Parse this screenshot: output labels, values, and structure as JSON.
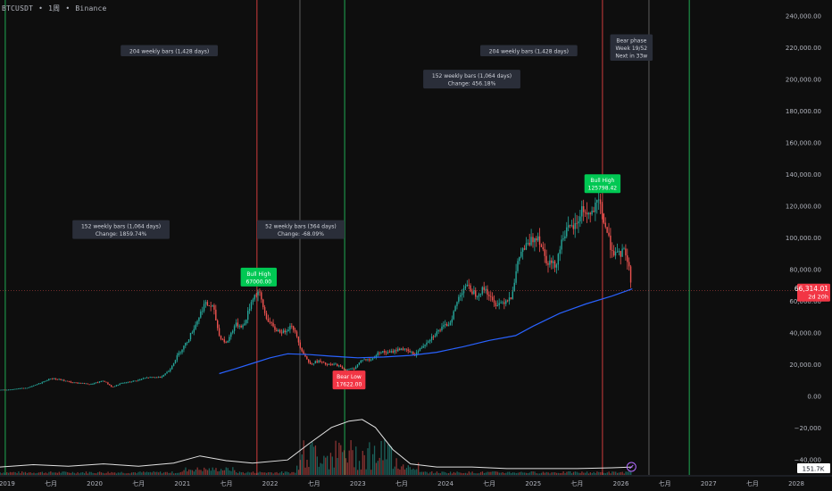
{
  "header": {
    "symbol": "BTCUSDT",
    "interval": "1周",
    "exchange": "Binance",
    "separator": "•"
  },
  "colors": {
    "background": "#0e0e0e",
    "up": "#26a69a",
    "down": "#ef5350",
    "ma": "#2962ff",
    "vol_ma": "#e0e0e0",
    "green_line": "#22c55e",
    "red_line": "#ef4444",
    "gray_line": "#9e9e9e",
    "label_bg": "#2a2e39",
    "bull_label": "#00c853",
    "bear_label": "#f23645",
    "price_label": "#f23645"
  },
  "last_price": {
    "value": "66,314.01",
    "countdown": "2d 20h"
  },
  "volume_readout": "151.7K",
  "chart_data": {
    "type": "candlestick",
    "y_axis": {
      "min": -50000,
      "max": 250000,
      "ticks": [
        240000,
        220000,
        200000,
        180000,
        160000,
        140000,
        120000,
        100000,
        80000,
        60000,
        40000,
        20000,
        0,
        -20000,
        -40000
      ],
      "tick_labels": [
        "240,000.00",
        "220,000.00",
        "200,000.00",
        "180,000.00",
        "160,000.00",
        "140,000.00",
        "120,000.00",
        "100,000.00",
        "80,000.00",
        "60,000.00",
        "40,000.00",
        "20,000.00",
        "0.00",
        "−20,000",
        "−40,000"
      ]
    },
    "x_axis": {
      "range": [
        2018.92,
        2028.0
      ],
      "ticks": [
        {
          "t": 2019.0,
          "label": "2019"
        },
        {
          "t": 2019.5,
          "label": "七月"
        },
        {
          "t": 2020.0,
          "label": "2020"
        },
        {
          "t": 2020.5,
          "label": "七月"
        },
        {
          "t": 2021.0,
          "label": "2021"
        },
        {
          "t": 2021.5,
          "label": "七月"
        },
        {
          "t": 2022.0,
          "label": "2022"
        },
        {
          "t": 2022.5,
          "label": "七月"
        },
        {
          "t": 2023.0,
          "label": "2023"
        },
        {
          "t": 2023.5,
          "label": "七月"
        },
        {
          "t": 2024.0,
          "label": "2024"
        },
        {
          "t": 2024.5,
          "label": "七月"
        },
        {
          "t": 2025.0,
          "label": "2025"
        },
        {
          "t": 2025.5,
          "label": "七月"
        },
        {
          "t": 2026.0,
          "label": "2026"
        },
        {
          "t": 2026.5,
          "label": "七月"
        },
        {
          "t": 2027.0,
          "label": "2027"
        },
        {
          "t": 2027.5,
          "label": "七月"
        },
        {
          "t": 2028.0,
          "label": "2028"
        }
      ]
    },
    "price_series": [
      [
        2018.92,
        3700
      ],
      [
        2019.0,
        3800
      ],
      [
        2019.25,
        5200
      ],
      [
        2019.4,
        8500
      ],
      [
        2019.5,
        11000
      ],
      [
        2019.6,
        10200
      ],
      [
        2019.75,
        8300
      ],
      [
        2019.85,
        8000
      ],
      [
        2019.95,
        7200
      ],
      [
        2020.1,
        9500
      ],
      [
        2020.2,
        5400
      ],
      [
        2020.3,
        7800
      ],
      [
        2020.45,
        9300
      ],
      [
        2020.6,
        11500
      ],
      [
        2020.75,
        11800
      ],
      [
        2020.85,
        16000
      ],
      [
        2020.95,
        26000
      ],
      [
        2021.05,
        34000
      ],
      [
        2021.15,
        45000
      ],
      [
        2021.25,
        58000
      ],
      [
        2021.35,
        56000
      ],
      [
        2021.42,
        38000
      ],
      [
        2021.5,
        33000
      ],
      [
        2021.6,
        45000
      ],
      [
        2021.7,
        44000
      ],
      [
        2021.8,
        62000
      ],
      [
        2021.87,
        66000
      ],
      [
        2021.95,
        50000
      ],
      [
        2022.05,
        42000
      ],
      [
        2022.15,
        40000
      ],
      [
        2022.25,
        45000
      ],
      [
        2022.35,
        30000
      ],
      [
        2022.45,
        20000
      ],
      [
        2022.55,
        22000
      ],
      [
        2022.65,
        19500
      ],
      [
        2022.75,
        19800
      ],
      [
        2022.85,
        16500
      ],
      [
        2022.95,
        16800
      ],
      [
        2023.05,
        23000
      ],
      [
        2023.15,
        22500
      ],
      [
        2023.25,
        28000
      ],
      [
        2023.35,
        27000
      ],
      [
        2023.5,
        30000
      ],
      [
        2023.65,
        26000
      ],
      [
        2023.8,
        35000
      ],
      [
        2023.95,
        42500
      ],
      [
        2024.05,
        46000
      ],
      [
        2024.15,
        62000
      ],
      [
        2024.22,
        70000
      ],
      [
        2024.35,
        64000
      ],
      [
        2024.45,
        68000
      ],
      [
        2024.55,
        58000
      ],
      [
        2024.65,
        59000
      ],
      [
        2024.75,
        63000
      ],
      [
        2024.85,
        90000
      ],
      [
        2024.95,
        96000
      ],
      [
        2025.05,
        102000
      ],
      [
        2025.15,
        86000
      ],
      [
        2025.25,
        82000
      ],
      [
        2025.35,
        103000
      ],
      [
        2025.5,
        108000
      ],
      [
        2025.55,
        118000
      ],
      [
        2025.65,
        114000
      ],
      [
        2025.75,
        122000
      ],
      [
        2025.8,
        112000
      ],
      [
        2025.88,
        95000
      ],
      [
        2025.95,
        88000
      ],
      [
        2026.05,
        92000
      ],
      [
        2026.1,
        78000
      ],
      [
        2026.13,
        66314
      ]
    ],
    "ma_series": [
      [
        2021.42,
        14000
      ],
      [
        2021.6,
        17000
      ],
      [
        2021.8,
        20500
      ],
      [
        2022.0,
        24000
      ],
      [
        2022.2,
        26500
      ],
      [
        2022.45,
        26000
      ],
      [
        2022.7,
        25000
      ],
      [
        2023.0,
        24000
      ],
      [
        2023.3,
        24500
      ],
      [
        2023.6,
        25500
      ],
      [
        2023.9,
        27500
      ],
      [
        2024.2,
        31000
      ],
      [
        2024.5,
        35000
      ],
      [
        2024.8,
        38000
      ],
      [
        2025.0,
        44000
      ],
      [
        2025.3,
        52000
      ],
      [
        2025.6,
        58000
      ],
      [
        2025.9,
        63000
      ],
      [
        2026.13,
        67500
      ]
    ],
    "volume_series_scaled": [
      [
        2018.92,
        -45000
      ],
      [
        2019.3,
        -43500
      ],
      [
        2019.7,
        -44500
      ],
      [
        2020.1,
        -43000
      ],
      [
        2020.5,
        -44500
      ],
      [
        2020.9,
        -42500
      ],
      [
        2021.2,
        -38000
      ],
      [
        2021.5,
        -41000
      ],
      [
        2021.8,
        -42500
      ],
      [
        2022.2,
        -40500
      ],
      [
        2022.45,
        -30000
      ],
      [
        2022.7,
        -20000
      ],
      [
        2022.9,
        -16000
      ],
      [
        2023.05,
        -15000
      ],
      [
        2023.2,
        -20000
      ],
      [
        2023.4,
        -34000
      ],
      [
        2023.6,
        -43000
      ],
      [
        2023.9,
        -45000
      ],
      [
        2024.3,
        -45000
      ],
      [
        2024.7,
        -46000
      ],
      [
        2025.1,
        -46000
      ],
      [
        2025.5,
        -46000
      ],
      [
        2025.9,
        -45500
      ],
      [
        2026.13,
        -45000
      ]
    ],
    "vertical_lines": [
      {
        "t": 2018.98,
        "kind": "green"
      },
      {
        "t": 2021.85,
        "kind": "red"
      },
      {
        "t": 2022.34,
        "kind": "gray"
      },
      {
        "t": 2022.85,
        "kind": "green"
      },
      {
        "t": 2025.79,
        "kind": "red"
      },
      {
        "t": 2026.32,
        "kind": "gray"
      },
      {
        "t": 2026.78,
        "kind": "green"
      }
    ],
    "annotations": [
      {
        "kind": "info",
        "t": 2020.85,
        "v": 218000,
        "lines": [
          "204 weekly bars (1,428 days)"
        ]
      },
      {
        "kind": "info",
        "t": 2024.95,
        "v": 218000,
        "lines": [
          "204 weekly bars (1,428 days)"
        ]
      },
      {
        "kind": "info",
        "t": 2024.3,
        "v": 200000,
        "lines": [
          "152 weekly bars (1,064 days)",
          "Change: 456.18%"
        ]
      },
      {
        "kind": "info",
        "t": 2020.3,
        "v": 105000,
        "lines": [
          "152 weekly bars (1,064 days)",
          "Change: 1859.74%"
        ]
      },
      {
        "kind": "info",
        "t": 2022.35,
        "v": 105000,
        "lines": [
          "52 weekly bars (364 days)",
          "Change: -68.09%"
        ]
      },
      {
        "kind": "info",
        "t": 2026.12,
        "v": 220000,
        "lines": [
          "Bear phase",
          "Week 19/52",
          "Next in 33w"
        ]
      },
      {
        "kind": "bull",
        "t": 2021.87,
        "v": 75000,
        "lines": [
          "Bull High",
          "67000.00"
        ]
      },
      {
        "kind": "bull",
        "t": 2025.79,
        "v": 134000,
        "lines": [
          "Bull High",
          "125798.42"
        ]
      },
      {
        "kind": "bear",
        "t": 2022.9,
        "v": 10000,
        "lines": [
          "Bear Low",
          "17622.00"
        ]
      }
    ]
  }
}
